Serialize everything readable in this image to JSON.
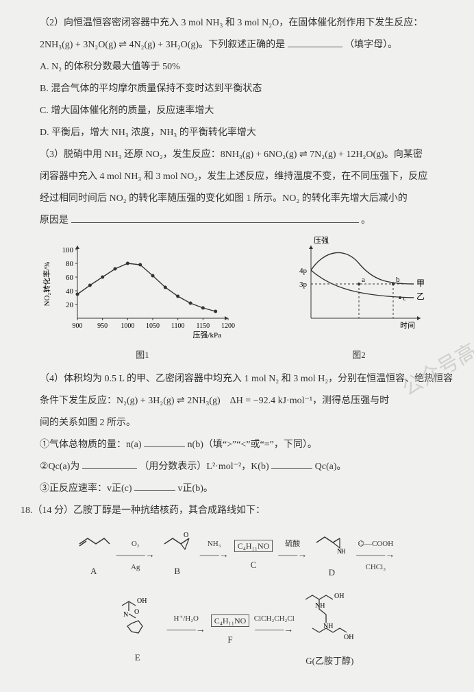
{
  "q2": {
    "stem1": "（2）向恒温恒容密闭容器中充入 3 mol NH₃ 和 3 mol N₂O，在固体催化剂作用下发生反应：",
    "eqn": "2NH₃(g) + 3N₂O(g) ⇌ 4N₂(g) + 3H₂O(g)。下列叙述正确的是",
    "tail": "（填字母）。",
    "A": "A. N₂ 的体积分数最大值等于 50%",
    "B": "B. 混合气体的平均摩尔质量保持不变时达到平衡状态",
    "C": "C. 增大固体催化剂的质量，反应速率增大",
    "D": "D. 平衡后，增大 NH₃ 浓度，NH₃ 的平衡转化率增大"
  },
  "q3": {
    "stem1": "（3）脱硝中用 NH₃ 还原 NO₂，发生反应：8NH₃(g) + 6NO₂(g) ⇌ 7N₂(g) + 12H₂O(g)。向某密",
    "stem2": "闭容器中充入 4 mol NH₃ 和 3 mol NO₂，发生上述反应，维持温度不变，在不同压强下，反应",
    "stem3": "经过相同时间后 NO₂ 的转化率随压强的变化如图 1 所示。NO₂ 的转化率先增大后减小的",
    "stem4": "原因是",
    "period": "。"
  },
  "fig1": {
    "ylabel": "NO₂转化率/%",
    "xlabel": "压强/kPa",
    "caption": "图1",
    "yticks": [
      20,
      40,
      60,
      80,
      100
    ],
    "xticks": [
      900,
      950,
      1000,
      1050,
      1100,
      1150,
      1200
    ],
    "points": [
      [
        900,
        35
      ],
      [
        925,
        48
      ],
      [
        950,
        60
      ],
      [
        975,
        72
      ],
      [
        1000,
        80
      ],
      [
        1025,
        78
      ],
      [
        1050,
        62
      ],
      [
        1075,
        45
      ],
      [
        1100,
        32
      ],
      [
        1125,
        22
      ],
      [
        1150,
        15
      ],
      [
        1175,
        10
      ]
    ],
    "axis_color": "#333",
    "line_color": "#333",
    "bg": "#f0f0ee"
  },
  "fig2": {
    "ylabel": "压强",
    "xlabel": "时间",
    "caption": "图2",
    "y_marks": [
      "4p",
      "3p"
    ],
    "labels": {
      "a": "a",
      "b": "b",
      "c": "c",
      "jia": "甲",
      "yi": "乙"
    },
    "axis_color": "#333"
  },
  "q4": {
    "stem1": "（4）体积均为 0.5 L 的甲、乙密闭容器中均充入 1 mol N₂ 和 3 mol H₂，分别在恒温恒容、绝热恒容",
    "stem2": "条件下发生反应：N₂(g) + 3H₂(g) ⇌ 2NH₃(g)　ΔH = −92.4 kJ·mol⁻¹，测得总压强与时",
    "stem3": "间的关系如图 2 所示。",
    "i": "①气体总物质的量：n(a)",
    "i_tail": "n(b)（填“>”“<”或“=”，下同）。",
    "ii_a": "②Qc(a)为",
    "ii_b": "（用分数表示）L²·mol⁻²，K(b)",
    "ii_c": "Qc(a)。",
    "iii": "③正反应速率：v正(c)",
    "iii_tail": "v正(b)。"
  },
  "q18": {
    "head": "18.（14 分）乙胺丁醇是一种抗结核药，其合成路线如下：",
    "labels": {
      "A": "A",
      "B": "B",
      "C": "C",
      "D": "D",
      "E": "E",
      "F": "F",
      "G": "G(乙胺丁醇)"
    },
    "reagents": {
      "r1_top": "O₂",
      "r1_bot": "Ag",
      "r2_top": "NH₃",
      "r3": "C₄H₁₁NO",
      "r3_top": "硫酸",
      "r4_top": "⌬—COOH",
      "r4_bot": "CHCl₃",
      "r5_top": "H⁺/H₂O",
      "r6": "C₄H₁₁NO",
      "r7_top": "ClCH₂CH₂Cl"
    }
  }
}
